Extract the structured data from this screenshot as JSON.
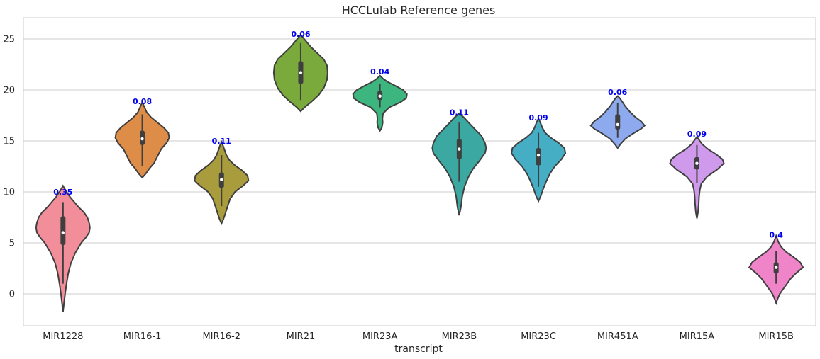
{
  "chart_data": {
    "type": "violin",
    "title": "HCCLulab Reference genes",
    "xlabel": "transcript",
    "ylabel": "",
    "ylim": [
      -3.2,
      27
    ],
    "yticks": [
      0,
      5,
      10,
      15,
      20,
      25
    ],
    "grid": true,
    "categories": [
      "MIR1228",
      "MIR16-1",
      "MIR16-2",
      "MIR21",
      "MIR23A",
      "MIR23B",
      "MIR23C",
      "MIR451A",
      "MIR15A",
      "MIR15B"
    ],
    "colors": [
      "#f28e99",
      "#de8d48",
      "#a89c3c",
      "#7aa93c",
      "#3db57f",
      "#3ba9a1",
      "#45aec4",
      "#8eaaee",
      "#cf9aeb",
      "#f084c8"
    ],
    "annotations": [
      "0.35",
      "0.08",
      "0.11",
      "0.06",
      "0.04",
      "0.11",
      "0.09",
      "0.06",
      "0.09",
      "0.4"
    ],
    "annotation_y": [
      10.0,
      18.9,
      15.0,
      25.5,
      21.8,
      17.8,
      17.3,
      19.8,
      15.7,
      5.8
    ],
    "median": [
      6.0,
      15.2,
      11.2,
      21.7,
      19.4,
      14.2,
      13.6,
      16.6,
      12.8,
      2.6
    ],
    "q1": [
      4.8,
      14.6,
      10.4,
      20.6,
      19.0,
      13.2,
      12.6,
      16.1,
      12.2,
      2.0
    ],
    "q3": [
      7.6,
      16.0,
      11.9,
      22.8,
      19.9,
      15.2,
      14.3,
      17.6,
      13.4,
      3.1
    ],
    "whisker_low": [
      1.0,
      12.5,
      8.6,
      19.0,
      18.3,
      11.0,
      10.5,
      15.3,
      10.9,
      1.0
    ],
    "whisker_high": [
      9.0,
      17.6,
      13.6,
      24.6,
      20.6,
      16.8,
      15.8,
      18.7,
      14.6,
      4.2
    ],
    "violin_ymin": [
      -1.8,
      11.4,
      6.9,
      17.9,
      16.0,
      7.7,
      9.1,
      14.3,
      7.4,
      -0.9
    ],
    "violin_ymax": [
      10.6,
      18.8,
      14.9,
      25.4,
      21.4,
      17.7,
      17.2,
      19.4,
      15.4,
      5.7
    ],
    "violin_profiles": [
      [
        [
          -1.8,
          0
        ],
        [
          -1,
          0.5
        ],
        [
          0,
          1.2
        ],
        [
          1,
          2
        ],
        [
          2,
          3
        ],
        [
          3,
          4.5
        ],
        [
          4,
          7
        ],
        [
          5,
          10.5
        ],
        [
          5.5,
          13
        ],
        [
          6,
          15
        ],
        [
          6.5,
          15.5
        ],
        [
          7,
          15
        ],
        [
          7.5,
          14
        ],
        [
          8,
          12
        ],
        [
          8.5,
          9
        ],
        [
          9,
          6.5
        ],
        [
          9.5,
          4
        ],
        [
          10,
          2
        ],
        [
          10.3,
          1
        ],
        [
          10.6,
          0
        ]
      ],
      [
        [
          11.4,
          0
        ],
        [
          11.8,
          4
        ],
        [
          12.3,
          8
        ],
        [
          12.8,
          13
        ],
        [
          13.5,
          17
        ],
        [
          14.2,
          21
        ],
        [
          14.8,
          27
        ],
        [
          15.3,
          30
        ],
        [
          15.8,
          29
        ],
        [
          16.3,
          24
        ],
        [
          16.8,
          17
        ],
        [
          17.3,
          10
        ],
        [
          17.8,
          5
        ],
        [
          18.3,
          2.5
        ],
        [
          18.8,
          0
        ]
      ],
      [
        [
          6.9,
          0
        ],
        [
          7.3,
          2
        ],
        [
          7.8,
          4
        ],
        [
          8.5,
          6.5
        ],
        [
          9.3,
          9.5
        ],
        [
          10,
          15
        ],
        [
          10.6,
          24
        ],
        [
          11.1,
          30
        ],
        [
          11.6,
          29
        ],
        [
          12.1,
          23
        ],
        [
          12.6,
          15
        ],
        [
          13.1,
          9
        ],
        [
          13.6,
          5.5
        ],
        [
          14.2,
          3
        ],
        [
          14.6,
          1.5
        ],
        [
          14.9,
          0
        ]
      ],
      [
        [
          17.9,
          0
        ],
        [
          18.3,
          3
        ],
        [
          18.8,
          8
        ],
        [
          19.5,
          14
        ],
        [
          20.2,
          18
        ],
        [
          21,
          20.5
        ],
        [
          21.7,
          21
        ],
        [
          22.4,
          20.5
        ],
        [
          23,
          18
        ],
        [
          23.6,
          13
        ],
        [
          24.2,
          8
        ],
        [
          24.8,
          4
        ],
        [
          25.1,
          2
        ],
        [
          25.4,
          0
        ]
      ],
      [
        [
          16.0,
          0
        ],
        [
          16.3,
          3
        ],
        [
          16.8,
          4.5
        ],
        [
          17.2,
          4
        ],
        [
          17.7,
          5
        ],
        [
          18.3,
          15
        ],
        [
          18.8,
          33
        ],
        [
          19.2,
          42
        ],
        [
          19.6,
          43
        ],
        [
          20.0,
          37
        ],
        [
          20.4,
          25
        ],
        [
          20.8,
          12
        ],
        [
          21.1,
          5
        ],
        [
          21.4,
          0
        ]
      ],
      [
        [
          7.7,
          0
        ],
        [
          8.5,
          1.5
        ],
        [
          9.5,
          2.5
        ],
        [
          10.5,
          4.5
        ],
        [
          11.5,
          8
        ],
        [
          12.3,
          12
        ],
        [
          13.0,
          17
        ],
        [
          13.8,
          22
        ],
        [
          14.3,
          23
        ],
        [
          14.8,
          22
        ],
        [
          15.5,
          19
        ],
        [
          16.2,
          13
        ],
        [
          16.8,
          8
        ],
        [
          17.3,
          4
        ],
        [
          17.7,
          0
        ]
      ],
      [
        [
          9.1,
          0
        ],
        [
          9.6,
          2.5
        ],
        [
          10.3,
          5
        ],
        [
          11.0,
          8
        ],
        [
          11.8,
          12
        ],
        [
          12.5,
          17
        ],
        [
          13.2,
          24
        ],
        [
          13.8,
          28
        ],
        [
          14.3,
          27
        ],
        [
          14.8,
          21
        ],
        [
          15.3,
          13
        ],
        [
          15.8,
          7
        ],
        [
          16.3,
          4
        ],
        [
          16.8,
          2
        ],
        [
          17.2,
          0
        ]
      ],
      [
        [
          14.3,
          0
        ],
        [
          14.7,
          3.5
        ],
        [
          15.2,
          9
        ],
        [
          15.7,
          18
        ],
        [
          16.2,
          28
        ],
        [
          16.5,
          32
        ],
        [
          16.9,
          28
        ],
        [
          17.4,
          20
        ],
        [
          17.9,
          14
        ],
        [
          18.4,
          9
        ],
        [
          18.9,
          5
        ],
        [
          19.2,
          2.5
        ],
        [
          19.4,
          0
        ]
      ],
      [
        [
          7.4,
          0
        ],
        [
          8,
          1.5
        ],
        [
          8.8,
          2.5
        ],
        [
          9.5,
          3
        ],
        [
          10.2,
          4
        ],
        [
          10.8,
          6
        ],
        [
          11.5,
          14
        ],
        [
          12.2,
          28
        ],
        [
          12.8,
          37
        ],
        [
          13.2,
          35
        ],
        [
          13.7,
          26
        ],
        [
          14.2,
          15
        ],
        [
          14.7,
          7
        ],
        [
          15.1,
          3
        ],
        [
          15.4,
          0
        ]
      ],
      [
        [
          -0.9,
          0
        ],
        [
          -0.5,
          2
        ],
        [
          0,
          5
        ],
        [
          0.5,
          10
        ],
        [
          1,
          15
        ],
        [
          1.5,
          20
        ],
        [
          2,
          27
        ],
        [
          2.6,
          37
        ],
        [
          3.1,
          33
        ],
        [
          3.6,
          24
        ],
        [
          4.1,
          14
        ],
        [
          4.6,
          7
        ],
        [
          5.1,
          3
        ],
        [
          5.4,
          1.5
        ],
        [
          5.7,
          0
        ]
      ]
    ]
  }
}
